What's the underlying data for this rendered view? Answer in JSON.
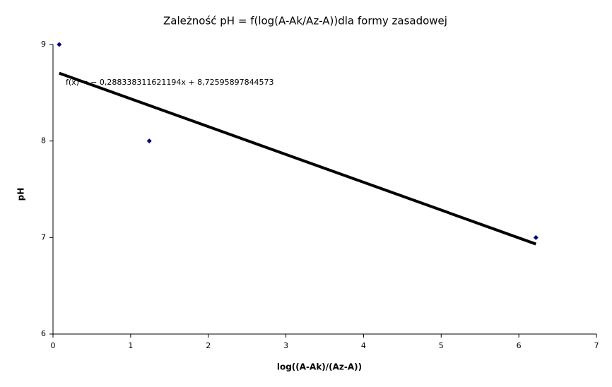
{
  "chart_data": {
    "type": "scatter",
    "title": "Zależność pH = f(log(A-Ak/Az-A))dla formy zasadowej",
    "x_label": "log((A-Ak)/(Az-A))",
    "y_label": "pH",
    "series": [
      {
        "name": "pH",
        "color": "#000080",
        "x": [
          0.08,
          1.24,
          6.22
        ],
        "values": [
          9,
          8,
          7
        ]
      }
    ],
    "trendline": {
      "slope": -0.288338311621194,
      "intercept": 8.72595897844573,
      "color": "#000000",
      "label": "f(x) = − 0,288338311621194x + 8,72595897844573"
    },
    "xlim": [
      0,
      7
    ],
    "xticks": [
      0,
      1,
      2,
      3,
      4,
      5,
      6,
      7
    ],
    "ylim": [
      6,
      9
    ],
    "yticks": [
      6,
      7,
      8,
      9
    ],
    "grid": false
  }
}
